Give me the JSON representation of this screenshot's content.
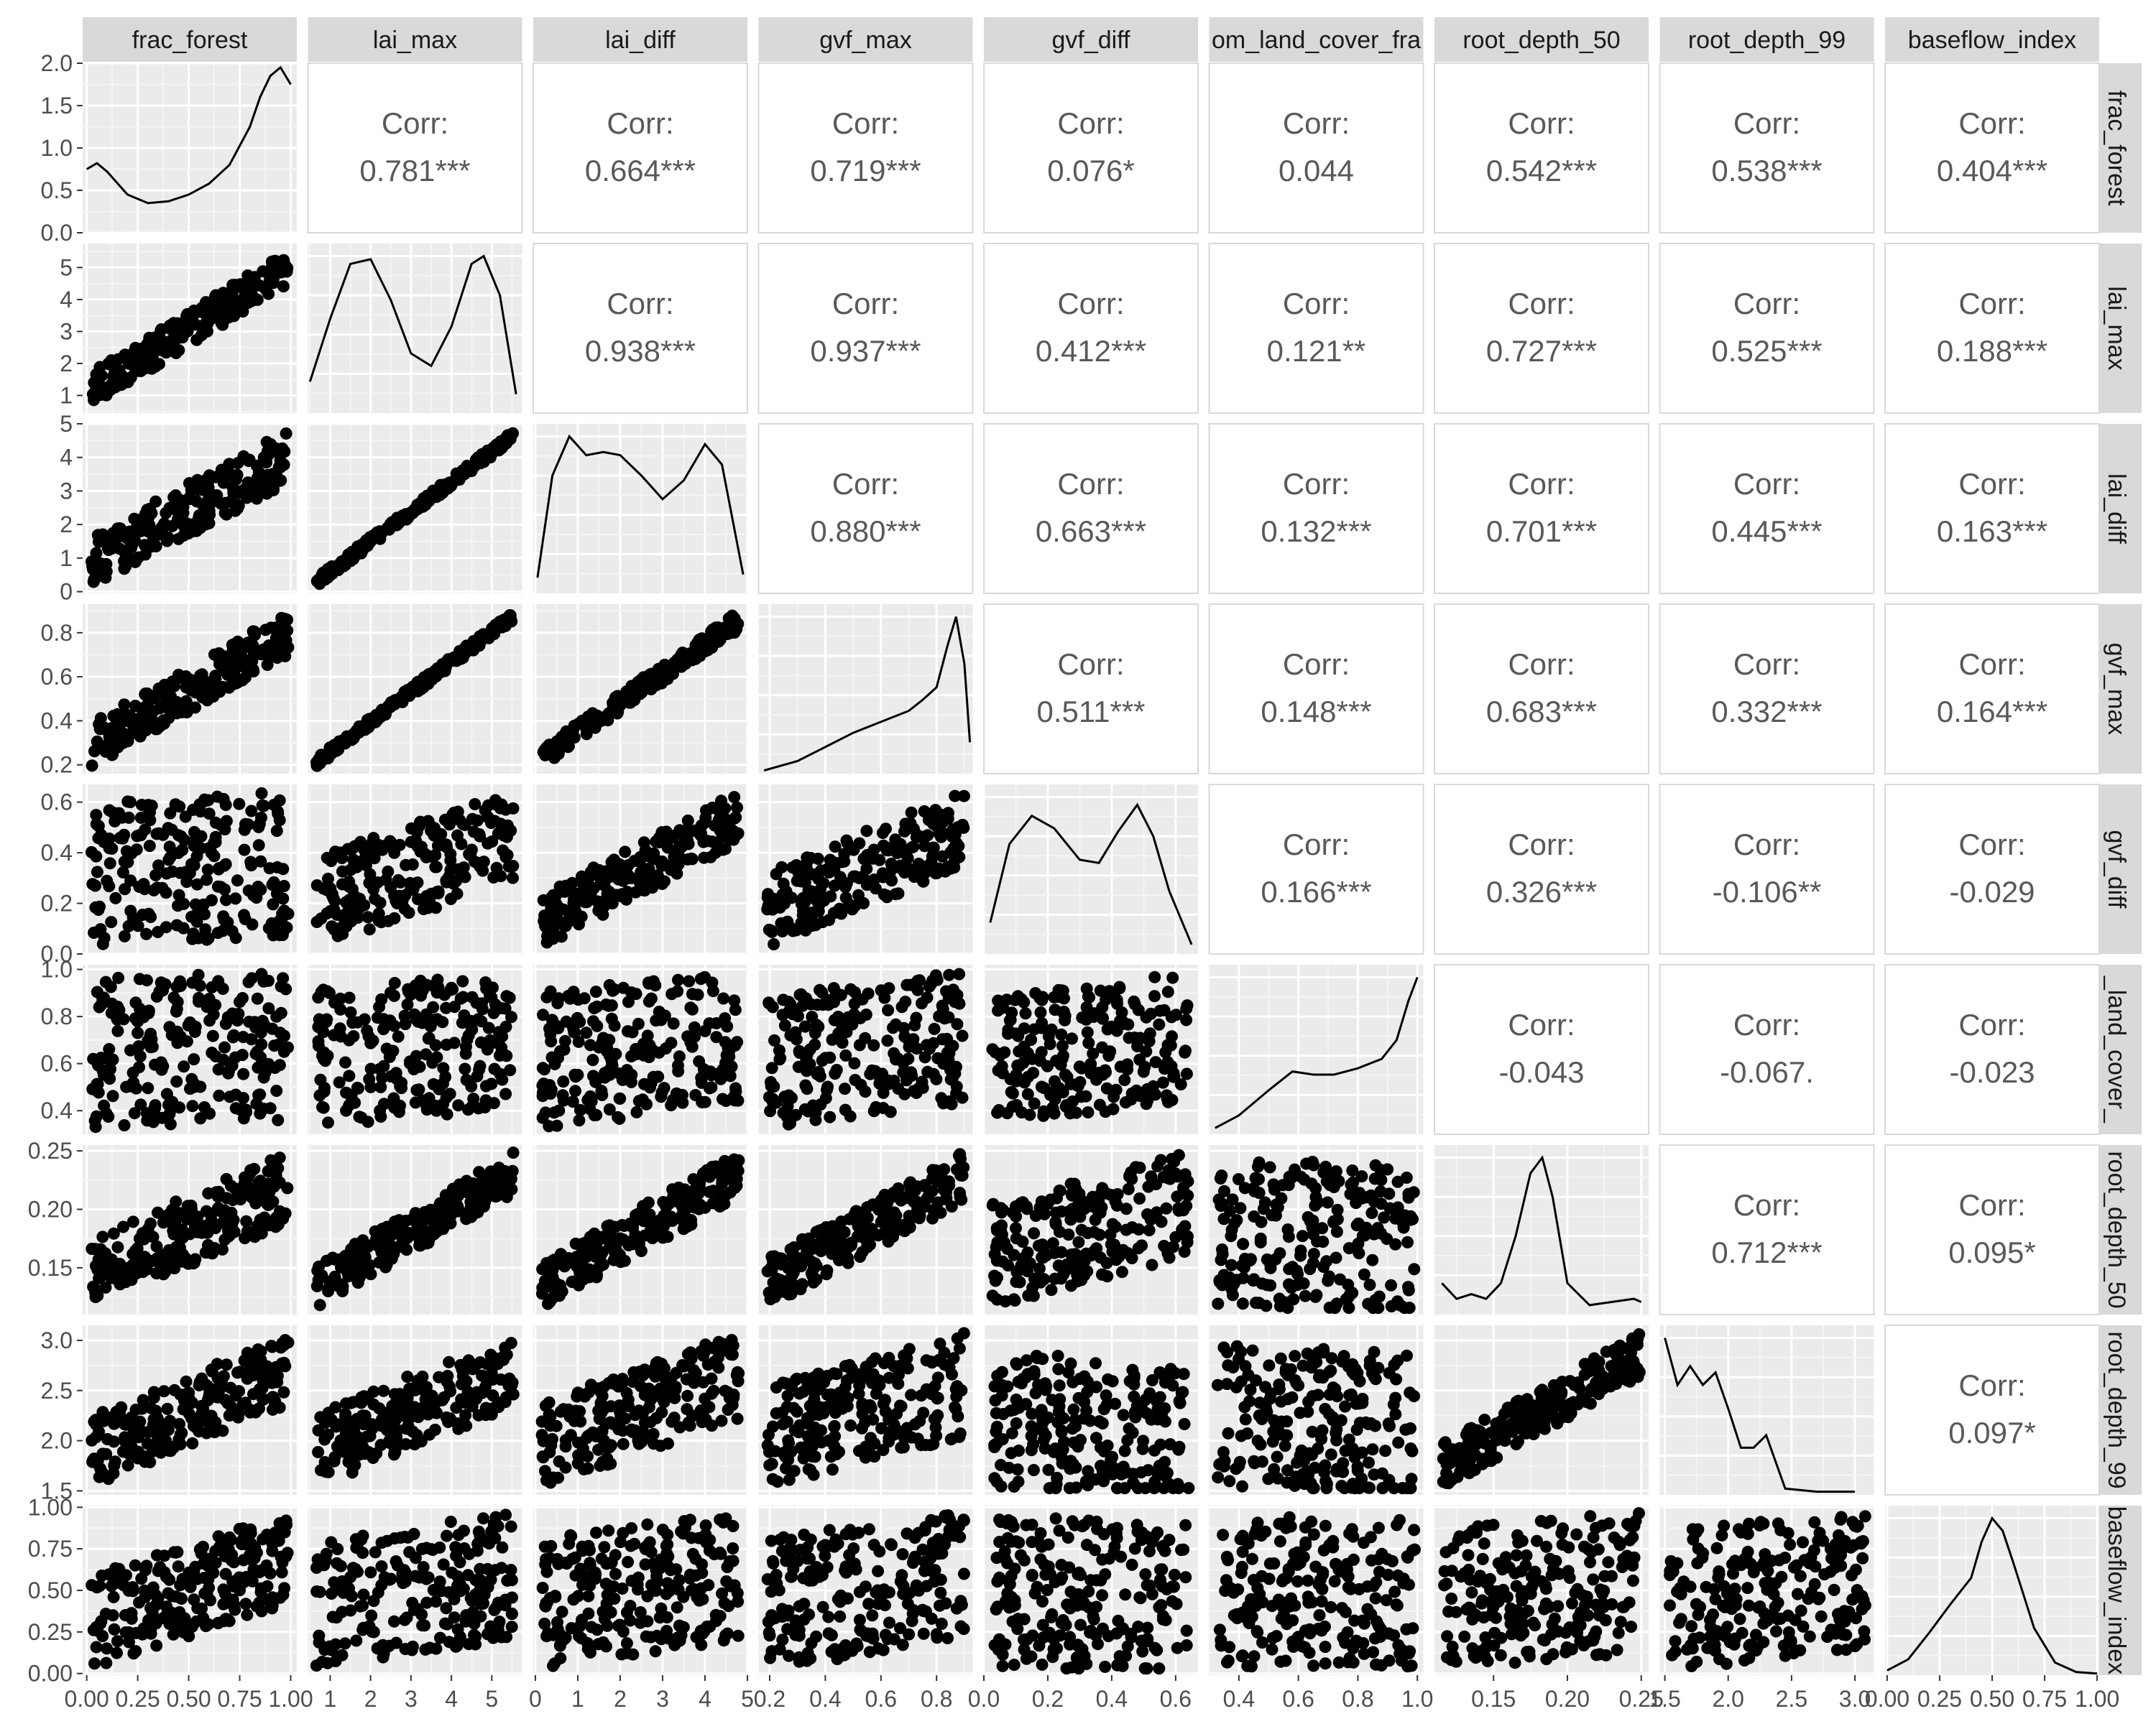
{
  "chart_data": {
    "type": "scatter",
    "variables": [
      "frac_forest",
      "lai_max",
      "lai_diff",
      "gvf_max",
      "gvf_diff",
      "dom_land_cover_frac",
      "root_depth_50",
      "root_depth_99",
      "baseflow_index"
    ],
    "strip_labels": [
      "frac_forest",
      "lai_max",
      "lai_diff",
      "gvf_max",
      "gvf_diff",
      "om_land_cover_fra",
      "root_depth_50",
      "root_depth_99",
      "baseflow_index"
    ],
    "row_strip_labels": [
      "frac_forest",
      "lai_max",
      "lai_diff",
      "gvf_max",
      "gvf_diff",
      "_land_cover_",
      "root_depth_50",
      "root_depth_99",
      "baseflow_index"
    ],
    "corr_label": "Corr:",
    "correlations": [
      {
        "row": 0,
        "col": 1,
        "value": "0.781***"
      },
      {
        "row": 0,
        "col": 2,
        "value": "0.664***"
      },
      {
        "row": 0,
        "col": 3,
        "value": "0.719***"
      },
      {
        "row": 0,
        "col": 4,
        "value": "0.076*"
      },
      {
        "row": 0,
        "col": 5,
        "value": "0.044"
      },
      {
        "row": 0,
        "col": 6,
        "value": "0.542***"
      },
      {
        "row": 0,
        "col": 7,
        "value": "0.538***"
      },
      {
        "row": 0,
        "col": 8,
        "value": "0.404***"
      },
      {
        "row": 1,
        "col": 2,
        "value": "0.938***"
      },
      {
        "row": 1,
        "col": 3,
        "value": "0.937***"
      },
      {
        "row": 1,
        "col": 4,
        "value": "0.412***"
      },
      {
        "row": 1,
        "col": 5,
        "value": "0.121**"
      },
      {
        "row": 1,
        "col": 6,
        "value": "0.727***"
      },
      {
        "row": 1,
        "col": 7,
        "value": "0.525***"
      },
      {
        "row": 1,
        "col": 8,
        "value": "0.188***"
      },
      {
        "row": 2,
        "col": 3,
        "value": "0.880***"
      },
      {
        "row": 2,
        "col": 4,
        "value": "0.663***"
      },
      {
        "row": 2,
        "col": 5,
        "value": "0.132***"
      },
      {
        "row": 2,
        "col": 6,
        "value": "0.701***"
      },
      {
        "row": 2,
        "col": 7,
        "value": "0.445***"
      },
      {
        "row": 2,
        "col": 8,
        "value": "0.163***"
      },
      {
        "row": 3,
        "col": 4,
        "value": "0.511***"
      },
      {
        "row": 3,
        "col": 5,
        "value": "0.148***"
      },
      {
        "row": 3,
        "col": 6,
        "value": "0.683***"
      },
      {
        "row": 3,
        "col": 7,
        "value": "0.332***"
      },
      {
        "row": 3,
        "col": 8,
        "value": "0.164***"
      },
      {
        "row": 4,
        "col": 5,
        "value": "0.166***"
      },
      {
        "row": 4,
        "col": 6,
        "value": "0.326***"
      },
      {
        "row": 4,
        "col": 7,
        "value": "-0.106**"
      },
      {
        "row": 4,
        "col": 8,
        "value": "-0.029"
      },
      {
        "row": 5,
        "col": 6,
        "value": "-0.043"
      },
      {
        "row": 5,
        "col": 7,
        "value": "-0.067."
      },
      {
        "row": 5,
        "col": 8,
        "value": "-0.023"
      },
      {
        "row": 6,
        "col": 7,
        "value": "0.712***"
      },
      {
        "row": 6,
        "col": 8,
        "value": "0.095*"
      },
      {
        "row": 7,
        "col": 8,
        "value": "0.097*"
      }
    ],
    "axes": [
      {
        "range": [
          -0.02,
          1.03
        ],
        "ticks": [
          0.0,
          0.25,
          0.5,
          0.75,
          1.0
        ],
        "tick_labels": [
          "0.00",
          "0.25",
          "0.50",
          "0.75",
          "1.00"
        ],
        "y_ticks": [
          0.0,
          0.25,
          0.5,
          0.75,
          1.0
        ],
        "y_tick_labels": [
          "0.00",
          "0.25",
          "0.50",
          "0.75",
          "1.00"
        ]
      },
      {
        "range": [
          0.45,
          5.75
        ],
        "ticks": [
          1,
          2,
          3,
          4,
          5
        ],
        "tick_labels": [
          "1",
          "2",
          "3",
          "4",
          "5"
        ],
        "y_ticks": [
          1,
          2,
          3,
          4,
          5
        ],
        "y_tick_labels": [
          "1",
          "2",
          "3",
          "4",
          "5"
        ]
      },
      {
        "range": [
          -0.05,
          5.0
        ],
        "ticks": [
          0,
          1,
          2,
          3,
          4,
          5
        ],
        "tick_labels": [
          "0",
          "1",
          "2",
          "3",
          "4",
          "5"
        ],
        "y_ticks": [
          0,
          1,
          2,
          3,
          4,
          5
        ],
        "y_tick_labels": [
          "0",
          "1",
          "2",
          "3",
          "4",
          "5"
        ]
      },
      {
        "range": [
          0.16,
          0.93
        ],
        "ticks": [
          0.2,
          0.4,
          0.6,
          0.8
        ],
        "tick_labels": [
          "0.2",
          "0.4",
          "0.6",
          "0.8"
        ],
        "y_ticks": [
          0.2,
          0.4,
          0.6,
          0.8
        ],
        "y_tick_labels": [
          "0.2",
          "0.4",
          "0.6",
          "0.8"
        ]
      },
      {
        "range": [
          0.0,
          0.67
        ],
        "ticks": [
          0.0,
          0.2,
          0.4,
          0.6
        ],
        "tick_labels": [
          "0.0",
          "0.2",
          "0.4",
          "0.6"
        ],
        "y_ticks": [
          0.0,
          0.2,
          0.4,
          0.6
        ],
        "y_tick_labels": [
          "0.0",
          "0.2",
          "0.4",
          "0.6"
        ]
      },
      {
        "range": [
          0.3,
          1.02
        ],
        "ticks": [
          0.4,
          0.6,
          0.8,
          1.0
        ],
        "tick_labels": [
          "0.4",
          "0.6",
          "0.8",
          "1.0"
        ],
        "y_ticks": [
          0.4,
          0.6,
          0.8,
          1.0
        ],
        "y_tick_labels": [
          "0.4",
          "0.6",
          "0.8",
          "1.0"
        ]
      },
      {
        "range": [
          0.11,
          0.255
        ],
        "ticks": [
          0.15,
          0.2,
          0.25
        ],
        "tick_labels": [
          "0.15",
          "0.20",
          "0.25"
        ],
        "y_ticks": [
          0.15,
          0.2,
          0.25
        ],
        "y_tick_labels": [
          "0.15",
          "0.20",
          "0.25"
        ]
      },
      {
        "range": [
          1.46,
          3.15
        ],
        "ticks": [
          1.5,
          2.0,
          2.5,
          3.0
        ],
        "tick_labels": [
          "1.5",
          "2.0",
          "2.5",
          "3.0"
        ],
        "y_ticks": [
          1.5,
          2.0,
          2.5,
          3.0
        ],
        "y_tick_labels": [
          "1.5",
          "2.0",
          "2.5",
          "3.0"
        ]
      },
      {
        "range": [
          -0.01,
          1.01
        ],
        "ticks": [
          0.0,
          0.25,
          0.5,
          0.75,
          1.0
        ],
        "tick_labels": [
          "0.00",
          "0.25",
          "0.50",
          "0.75",
          "1.00"
        ],
        "y_ticks": [
          0.0,
          0.25,
          0.5,
          0.75,
          1.0
        ],
        "y_tick_labels": [
          "0.00",
          "0.25",
          "0.50",
          "0.75",
          "1.00"
        ]
      }
    ],
    "density_first_panel_axis": {
      "range": [
        0,
        2.0
      ],
      "ticks": [
        0.0,
        0.5,
        1.0,
        1.5,
        2.0
      ],
      "tick_labels": [
        "0.0",
        "0.5",
        "1.0",
        "1.5",
        "2.0"
      ]
    },
    "densities": [
      {
        "x": [
          0.0,
          0.05,
          0.1,
          0.2,
          0.3,
          0.4,
          0.5,
          0.6,
          0.7,
          0.8,
          0.85,
          0.9,
          0.95,
          1.0
        ],
        "y": [
          0.75,
          0.82,
          0.72,
          0.45,
          0.35,
          0.37,
          0.45,
          0.58,
          0.8,
          1.25,
          1.6,
          1.85,
          1.95,
          1.75
        ]
      },
      {
        "x": [
          0.5,
          1.0,
          1.5,
          2.0,
          2.5,
          3.0,
          3.5,
          4.0,
          4.5,
          4.8,
          5.2,
          5.6
        ],
        "y": [
          0.2,
          0.6,
          0.95,
          0.98,
          0.72,
          0.38,
          0.3,
          0.55,
          0.95,
          1.0,
          0.75,
          0.12
        ]
      },
      {
        "x": [
          0.05,
          0.4,
          0.8,
          1.2,
          1.6,
          2.0,
          2.5,
          3.0,
          3.5,
          4.0,
          4.4,
          4.9
        ],
        "y": [
          0.1,
          0.75,
          1.0,
          0.88,
          0.9,
          0.88,
          0.75,
          0.6,
          0.72,
          0.95,
          0.82,
          0.12
        ]
      },
      {
        "x": [
          0.18,
          0.3,
          0.4,
          0.5,
          0.6,
          0.7,
          0.75,
          0.8,
          0.84,
          0.87,
          0.9,
          0.92
        ],
        "y": [
          0.02,
          0.08,
          0.17,
          0.26,
          0.33,
          0.4,
          0.47,
          0.55,
          0.82,
          1.0,
          0.7,
          0.2
        ]
      },
      {
        "x": [
          0.02,
          0.08,
          0.15,
          0.22,
          0.3,
          0.36,
          0.42,
          0.48,
          0.53,
          0.58,
          0.65
        ],
        "y": [
          0.2,
          0.7,
          0.88,
          0.8,
          0.6,
          0.58,
          0.78,
          0.95,
          0.75,
          0.4,
          0.06
        ]
      },
      {
        "x": [
          0.32,
          0.4,
          0.5,
          0.58,
          0.65,
          0.72,
          0.8,
          0.88,
          0.93,
          0.97,
          1.0
        ],
        "y": [
          0.04,
          0.12,
          0.28,
          0.4,
          0.38,
          0.38,
          0.42,
          0.48,
          0.6,
          0.85,
          1.0
        ]
      },
      {
        "x": [
          0.115,
          0.125,
          0.135,
          0.145,
          0.155,
          0.165,
          0.175,
          0.183,
          0.19,
          0.2,
          0.215,
          0.23,
          0.245,
          0.25
        ],
        "y": [
          0.2,
          0.1,
          0.13,
          0.1,
          0.2,
          0.5,
          0.9,
          1.0,
          0.75,
          0.2,
          0.06,
          0.08,
          0.1,
          0.08
        ]
      },
      {
        "x": [
          1.5,
          1.6,
          1.7,
          1.8,
          1.9,
          2.0,
          2.1,
          2.2,
          2.3,
          2.45,
          2.7,
          3.0
        ],
        "y": [
          1.0,
          0.7,
          0.82,
          0.7,
          0.78,
          0.55,
          0.3,
          0.3,
          0.38,
          0.04,
          0.02,
          0.02
        ]
      },
      {
        "x": [
          0.0,
          0.1,
          0.2,
          0.3,
          0.4,
          0.45,
          0.5,
          0.55,
          0.6,
          0.7,
          0.8,
          0.9,
          1.0
        ],
        "y": [
          0.03,
          0.1,
          0.27,
          0.45,
          0.62,
          0.85,
          1.0,
          0.92,
          0.72,
          0.3,
          0.08,
          0.02,
          0.01
        ]
      }
    ]
  }
}
